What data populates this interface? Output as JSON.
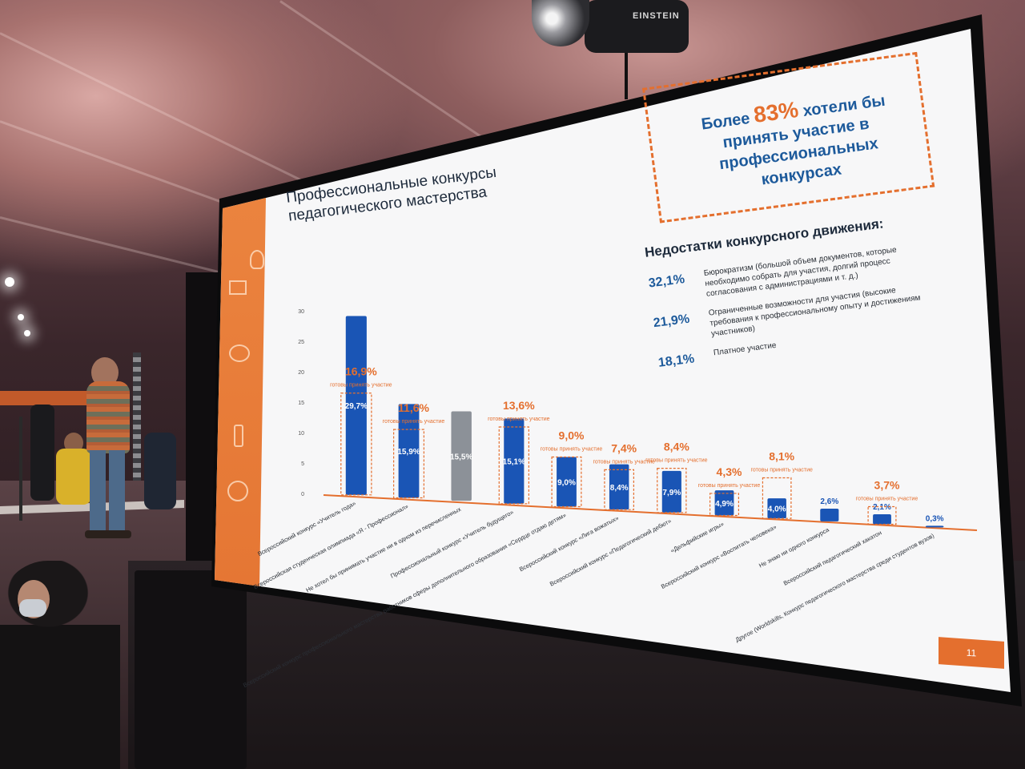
{
  "slide": {
    "title_line1": "Профессиональные конкурсы",
    "title_line2": "педагогического мастерства",
    "callout": {
      "prefix": "Более",
      "highlight": "83%",
      "text_rest": "хотели бы принять участие в профессиональных конкурсах"
    },
    "drawbacks": {
      "title": "Недостатки конкурсного движения:",
      "items": [
        {
          "pct": "32,1%",
          "text": "Бюрократизм (большой объем документов, которые необходимо собрать для участия, долгий процесс согласования с администрациями и т. д.)"
        },
        {
          "pct": "21,9%",
          "text": "Ограниченные возможности для участия (высокие требования к профессиональному опыту и достижениям участников)"
        },
        {
          "pct": "18,1%",
          "text": "Платное участие"
        }
      ]
    },
    "page_number": "11"
  },
  "projector_brand": "EINSTEIN",
  "chart_data": {
    "type": "bar",
    "ylim": [
      0,
      30
    ],
    "yticks": [
      "0",
      "5",
      "10",
      "15",
      "20",
      "25",
      "30"
    ],
    "colors": {
      "blue": "#1a55b5",
      "gray": "#8c9198",
      "orange": "#e46f2e"
    },
    "categories": [
      "Всероссийский конкурс «Учитель года»",
      "Всероссийская студенческая олимпиада «Я - Профессионал»",
      "Не хотел бы принимать участие ни в одном из перечисленных",
      "Профессиональный конкурс «Учитель будущего»",
      "Всероссийский конкурс профессионального мастерства работников сферы дополнительного образования «Сердце отдаю детям»",
      "Всероссийский конкурс «Лига вожатых»",
      "Всероссийский конкурс «Педагогический дебют»",
      "«Дельфийские игры»",
      "Всероссийский конкурс «Воспитать человека»",
      "Не знаю ни одного конкурса",
      "Всероссийский педагогический хакатон",
      "Другое (Worldskills, Конкурс педагогического мастерства среди студентов вузов)"
    ],
    "values": [
      29.7,
      15.9,
      15.5,
      15.1,
      9.0,
      8.4,
      7.9,
      4.9,
      4.0,
      2.6,
      2.1,
      0.3
    ],
    "value_labels": [
      "29,7%",
      "15,9%",
      "15,5%",
      "15,1%",
      "9,0%",
      "8,4%",
      "7,9%",
      "4,9%",
      "4,0%",
      "2,6%",
      "2,1%",
      "0,3%"
    ],
    "bar_colors": [
      "blue",
      "blue",
      "gray",
      "blue",
      "blue",
      "blue",
      "blue",
      "blue",
      "blue",
      "blue",
      "blue",
      "blue"
    ],
    "ready": [
      {
        "index": 0,
        "pct": "16,9%",
        "value": 16.9,
        "label": "готовы принять участие"
      },
      {
        "index": 1,
        "pct": "11,6%",
        "value": 11.6,
        "label": "готовы принять участие"
      },
      {
        "index": 3,
        "pct": "13,6%",
        "value": 13.6,
        "label": "готовы принять участие"
      },
      {
        "index": 4,
        "pct": "9,0%",
        "value": 9.0,
        "label": "готовы принять участие"
      },
      {
        "index": 5,
        "pct": "7,4%",
        "value": 7.4,
        "label": "готовы принять участие"
      },
      {
        "index": 6,
        "pct": "8,4%",
        "value": 8.4,
        "label": "готовы принять участие"
      },
      {
        "index": 7,
        "pct": "4,3%",
        "value": 4.3,
        "label": "готовы принять участие"
      },
      {
        "index": 8,
        "pct": "8,1%",
        "value": 8.1,
        "label": "готовы принять участие"
      },
      {
        "index": 10,
        "pct": "3,7%",
        "value": 3.7,
        "label": "готовы принять участие"
      }
    ]
  }
}
